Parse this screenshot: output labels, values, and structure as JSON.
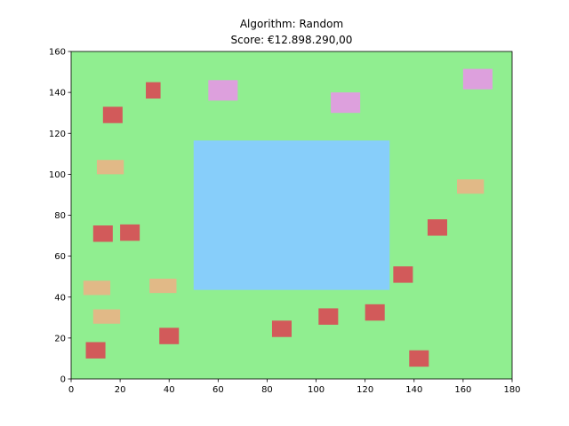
{
  "chart_data": {
    "type": "map",
    "title": "Algorithm: Random",
    "subtitle": "Score: €12.898.290,00",
    "xlabel": "",
    "ylabel": "",
    "xlim": [
      0,
      180
    ],
    "ylim": [
      0,
      160
    ],
    "xticks": [
      0,
      20,
      40,
      60,
      80,
      100,
      120,
      140,
      160,
      180
    ],
    "yticks": [
      0,
      20,
      40,
      60,
      80,
      100,
      120,
      140,
      160
    ],
    "grid": false,
    "background_color": "#90EE90",
    "water": {
      "x": [
        50,
        130
      ],
      "y": [
        43.5,
        116.5
      ],
      "color": "#87CEFA"
    },
    "houses": [
      {
        "type": "red",
        "color": "#D25A5A",
        "x": [
          30.5,
          36.5
        ],
        "y": [
          137,
          145
        ]
      },
      {
        "type": "red",
        "color": "#D25A5A",
        "x": [
          13,
          21
        ],
        "y": [
          125,
          133
        ]
      },
      {
        "type": "red",
        "color": "#D25A5A",
        "x": [
          9,
          17
        ],
        "y": [
          67,
          75
        ]
      },
      {
        "type": "red",
        "color": "#D25A5A",
        "x": [
          20,
          28
        ],
        "y": [
          67.5,
          75.5
        ]
      },
      {
        "type": "red",
        "color": "#D25A5A",
        "x": [
          36,
          44
        ],
        "y": [
          17,
          25
        ]
      },
      {
        "type": "red",
        "color": "#D25A5A",
        "x": [
          6,
          14
        ],
        "y": [
          10,
          18
        ]
      },
      {
        "type": "red",
        "color": "#D25A5A",
        "x": [
          82,
          90
        ],
        "y": [
          20.5,
          28.5
        ]
      },
      {
        "type": "red",
        "color": "#D25A5A",
        "x": [
          101,
          109
        ],
        "y": [
          26.5,
          34.5
        ]
      },
      {
        "type": "red",
        "color": "#D25A5A",
        "x": [
          120,
          128
        ],
        "y": [
          28.5,
          36.5
        ]
      },
      {
        "type": "red",
        "color": "#D25A5A",
        "x": [
          131.5,
          139.5
        ],
        "y": [
          47,
          55
        ]
      },
      {
        "type": "red",
        "color": "#D25A5A",
        "x": [
          145.5,
          153.5
        ],
        "y": [
          70,
          78
        ]
      },
      {
        "type": "red",
        "color": "#D25A5A",
        "x": [
          138,
          146
        ],
        "y": [
          6,
          14
        ]
      },
      {
        "type": "beige",
        "color": "#E1B987",
        "x": [
          10.5,
          21.5
        ],
        "y": [
          100,
          107
        ]
      },
      {
        "type": "beige",
        "color": "#E1B987",
        "x": [
          5,
          16
        ],
        "y": [
          41,
          48
        ]
      },
      {
        "type": "beige",
        "color": "#E1B987",
        "x": [
          32,
          43
        ],
        "y": [
          42,
          49
        ]
      },
      {
        "type": "beige",
        "color": "#E1B987",
        "x": [
          9,
          20
        ],
        "y": [
          27,
          34
        ]
      },
      {
        "type": "beige",
        "color": "#E1B987",
        "x": [
          157.5,
          168.5
        ],
        "y": [
          90.5,
          97.5
        ]
      },
      {
        "type": "pink",
        "color": "#DDA0DD",
        "x": [
          56,
          68
        ],
        "y": [
          136,
          146
        ]
      },
      {
        "type": "pink",
        "color": "#DDA0DD",
        "x": [
          106,
          118
        ],
        "y": [
          130,
          140
        ]
      },
      {
        "type": "pink",
        "color": "#DDA0DD",
        "x": [
          160,
          172
        ],
        "y": [
          141.5,
          151.5
        ]
      }
    ]
  }
}
